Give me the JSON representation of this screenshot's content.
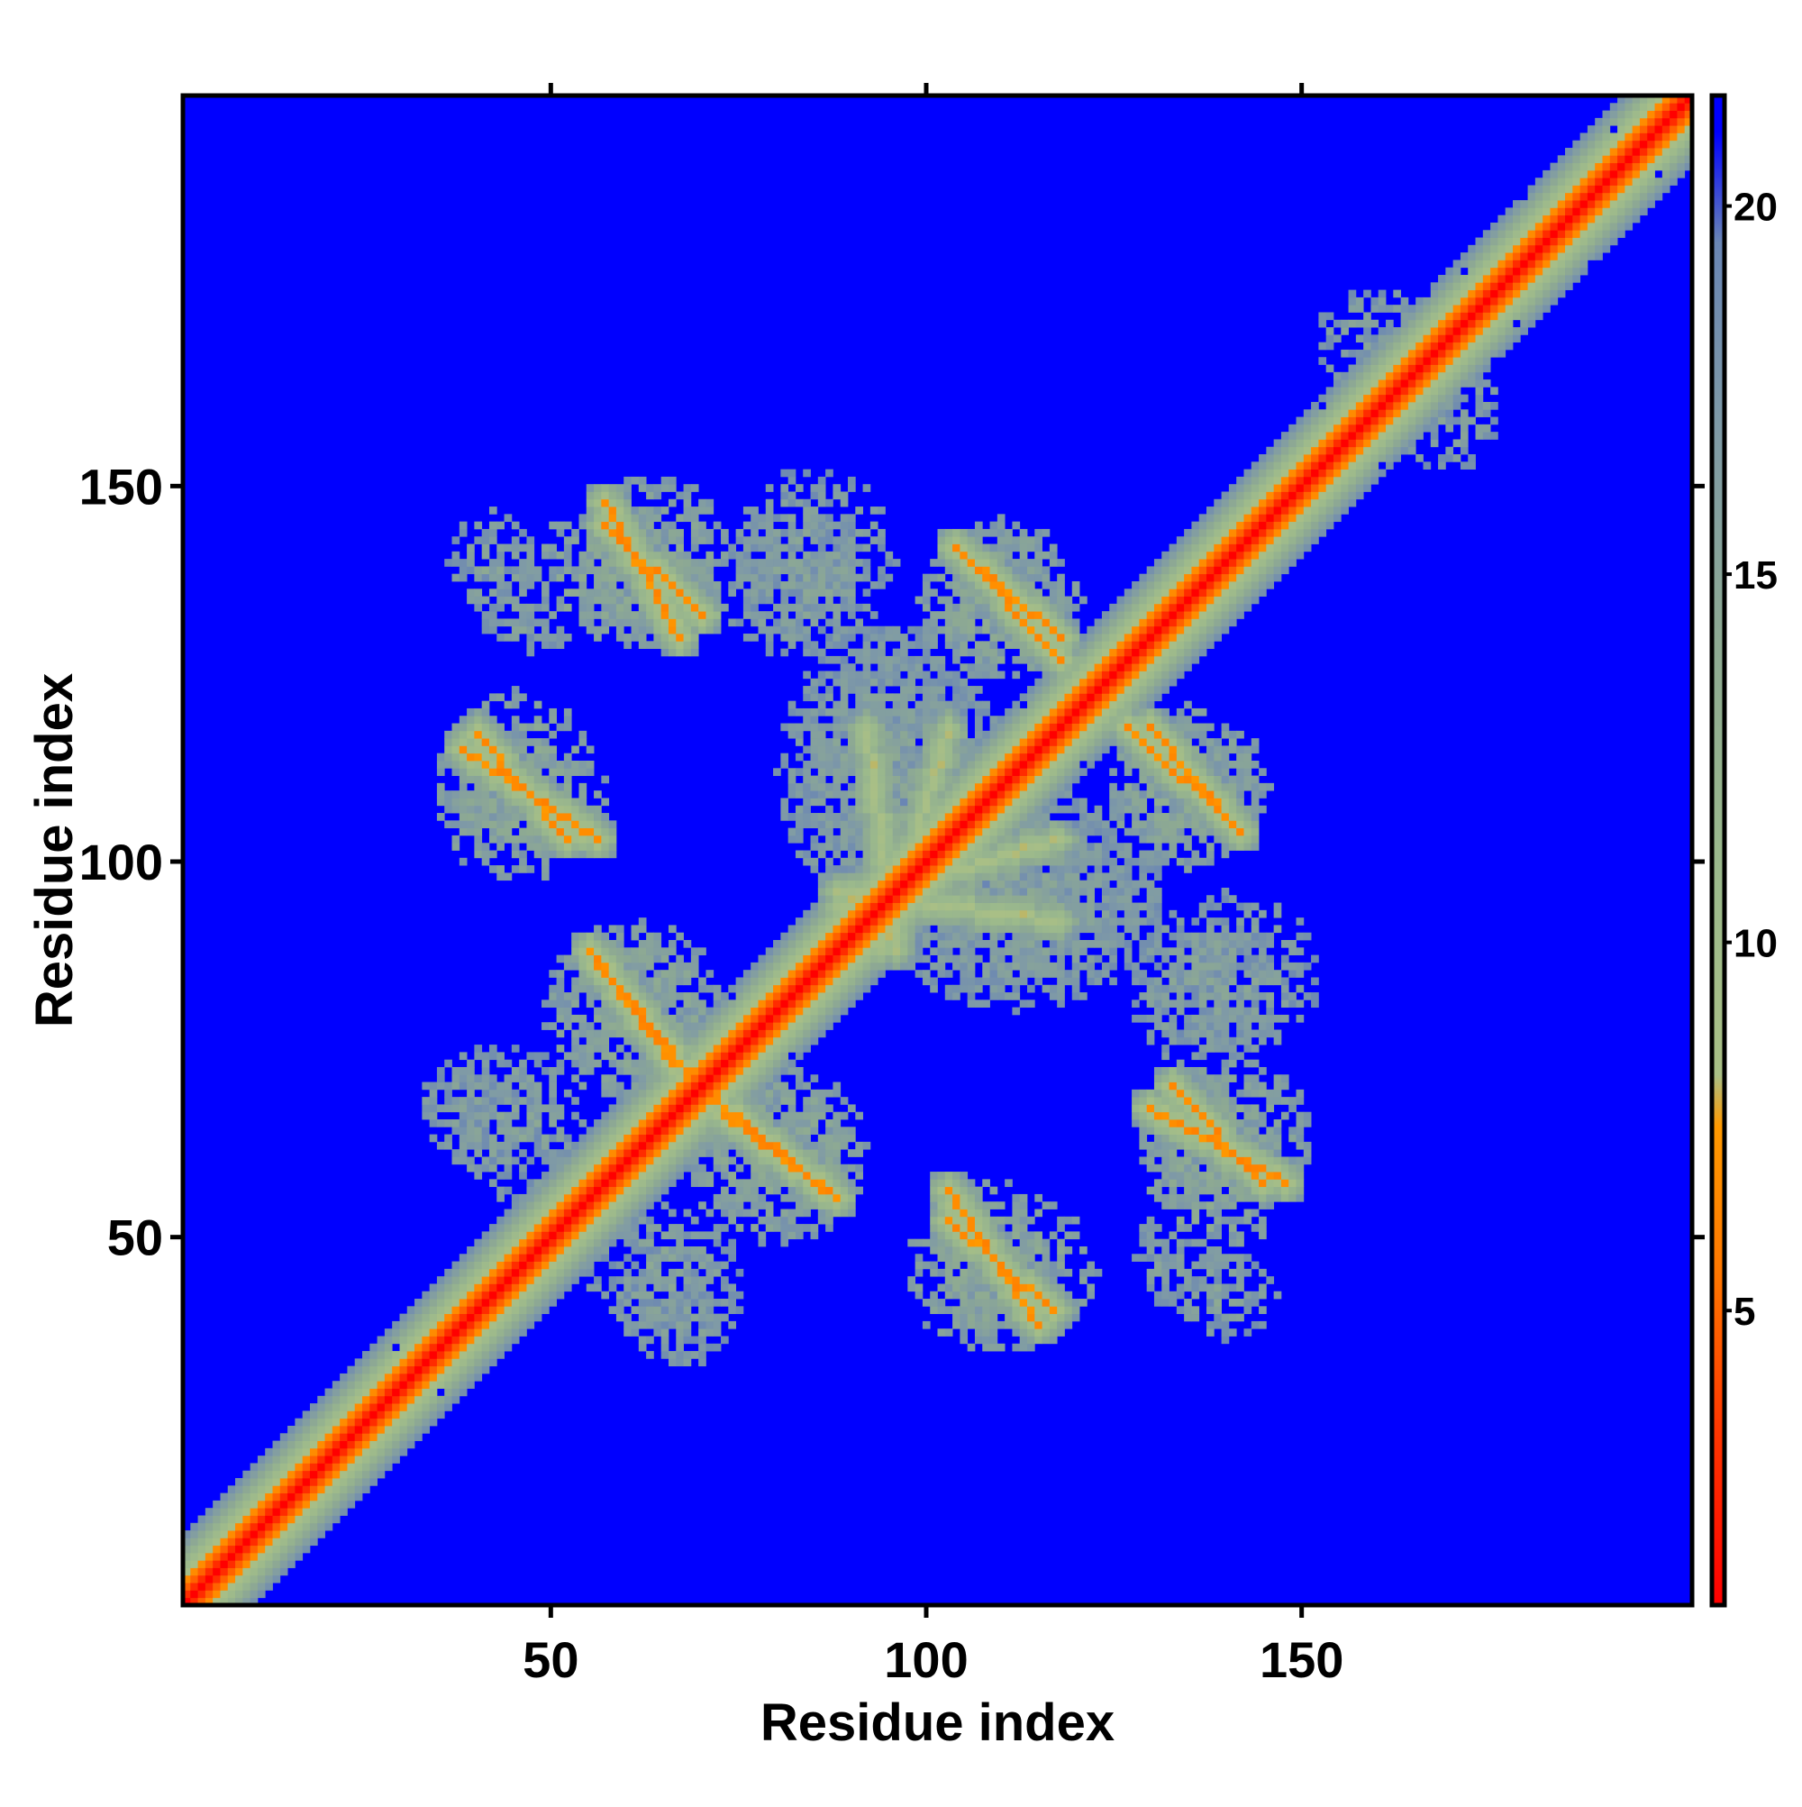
{
  "chart_data": {
    "type": "heatmap",
    "title": "",
    "xlabel": "Residue index",
    "ylabel": "Residue index",
    "n_residues": 202,
    "xlim": [
      1,
      202
    ],
    "ylim": [
      1,
      202
    ],
    "x_ticks": [
      50,
      100,
      150
    ],
    "y_ticks": [
      50,
      100,
      150
    ],
    "colorbar": {
      "range": [
        1,
        21.5
      ],
      "ticks": [
        5,
        10,
        15,
        20
      ],
      "stops": [
        {
          "value": 1.0,
          "color": "#ff0000"
        },
        {
          "value": 3.5,
          "color": "#ff3a00"
        },
        {
          "value": 5.5,
          "color": "#ff7700"
        },
        {
          "value": 7.5,
          "color": "#ff9900"
        },
        {
          "value": 8.2,
          "color": "#a9bf86"
        },
        {
          "value": 11.0,
          "color": "#9bb98c"
        },
        {
          "value": 14.0,
          "color": "#8eaa92"
        },
        {
          "value": 17.0,
          "color": "#7f9aa6"
        },
        {
          "value": 19.5,
          "color": "#6a86b4"
        },
        {
          "value": 21.0,
          "color": "#0000ff"
        }
      ]
    },
    "background_value": 21,
    "background_color": "#0000ff",
    "diagonal_band": {
      "halfwidth_residues": 9,
      "center_value": 1
    },
    "contact_strands": [
      {
        "start": [
          40,
          117
        ],
        "end": [
          52,
          103
        ],
        "min_value": 6
      },
      {
        "start": [
          57,
          148
        ],
        "end": [
          67,
          130
        ],
        "min_value": 6
      },
      {
        "start": [
          104,
          142
        ],
        "end": [
          118,
          127
        ],
        "min_value": 6
      },
      {
        "start": [
          130,
          118
        ],
        "end": [
          142,
          104
        ],
        "min_value": 6
      },
      {
        "start": [
          55,
          88
        ],
        "end": [
          68,
          72
        ],
        "min_value": 6
      },
      {
        "start": [
          73,
          66
        ],
        "end": [
          88,
          55
        ],
        "min_value": 6
      },
      {
        "start": [
          103,
          56
        ],
        "end": [
          115,
          38
        ],
        "min_value": 6
      },
      {
        "start": [
          133,
          70
        ],
        "end": [
          145,
          57
        ],
        "min_value": 6
      },
      {
        "start": [
          88,
          96
        ],
        "end": [
          118,
          92
        ],
        "min_value": 8
      },
      {
        "start": [
          94,
          88
        ],
        "end": [
          103,
          118
        ],
        "min_value": 8
      }
    ],
    "contact_clusters": [
      {
        "center": [
          47,
          108
        ],
        "size": [
          22,
          16
        ],
        "value": 14
      },
      {
        "center": [
          58,
          138
        ],
        "size": [
          26,
          18
        ],
        "value": 14
      },
      {
        "center": [
          82,
          137
        ],
        "size": [
          20,
          20
        ],
        "value": 15
      },
      {
        "center": [
          110,
          135
        ],
        "size": [
          22,
          20
        ],
        "value": 14
      },
      {
        "center": [
          135,
          110
        ],
        "size": [
          22,
          22
        ],
        "value": 14
      },
      {
        "center": [
          112,
          95
        ],
        "size": [
          40,
          30
        ],
        "value": 15
      },
      {
        "center": [
          95,
          112
        ],
        "size": [
          30,
          40
        ],
        "value": 15
      },
      {
        "center": [
          60,
          80
        ],
        "size": [
          24,
          24
        ],
        "value": 14
      },
      {
        "center": [
          80,
          62
        ],
        "size": [
          24,
          22
        ],
        "value": 14
      },
      {
        "center": [
          110,
          45
        ],
        "size": [
          26,
          22
        ],
        "value": 14
      },
      {
        "center": [
          140,
          63
        ],
        "size": [
          24,
          22
        ],
        "value": 14
      },
      {
        "center": [
          140,
          85
        ],
        "size": [
          26,
          22
        ],
        "value": 15
      },
      {
        "center": [
          65,
          45
        ],
        "size": [
          22,
          18
        ],
        "value": 15
      },
      {
        "center": [
          40,
          67
        ],
        "size": [
          16,
          16
        ],
        "value": 15
      },
      {
        "center": [
          140,
          42
        ],
        "size": [
          14,
          12
        ],
        "value": 15
      },
      {
        "center": [
          170,
          160
        ],
        "size": [
          14,
          16
        ],
        "value": 15
      },
      {
        "center": [
          47,
          132
        ],
        "size": [
          14,
          8
        ],
        "value": 15
      }
    ]
  }
}
